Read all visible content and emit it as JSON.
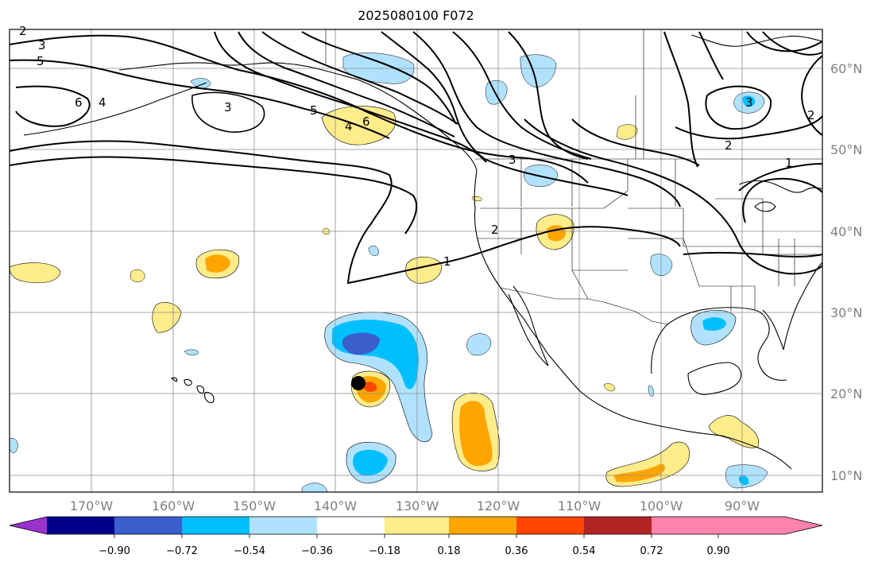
{
  "title": "2025080100 F072",
  "map": {
    "longitude_labels": [
      "170°W",
      "160°W",
      "150°W",
      "140°W",
      "130°W",
      "120°W",
      "110°W",
      "100°W",
      "90°W"
    ],
    "latitude_labels": [
      "60°N",
      "50°N",
      "40°N",
      "30°N",
      "20°N",
      "10°N"
    ],
    "contour_labels": [
      "2",
      "3",
      "5",
      "6",
      "4",
      "3",
      "5",
      "6",
      "4",
      "3",
      "2",
      "1",
      "2",
      "1",
      "2",
      "3"
    ],
    "marker": "storm-center-dot"
  },
  "colorbar": {
    "tick_labels": [
      "−0.90",
      "−0.72",
      "−0.54",
      "−0.36",
      "−0.18",
      "0.18",
      "0.36",
      "0.54",
      "0.72",
      "0.90"
    ],
    "colors": [
      "#9932cc",
      "#00008b",
      "#3a5fcd",
      "#00bfff",
      "#b0e2ff",
      "#ffffff",
      "#ffec8b",
      "#ffa500",
      "#ff4500",
      "#b22222",
      "#ff82ab"
    ]
  },
  "fill_colors": {
    "neg1": "#b0e2ff",
    "neg2": "#00bfff",
    "neg3": "#3a5fcd",
    "pos1": "#ffec8b",
    "pos2": "#ffa500",
    "pos3": "#ff4500"
  }
}
